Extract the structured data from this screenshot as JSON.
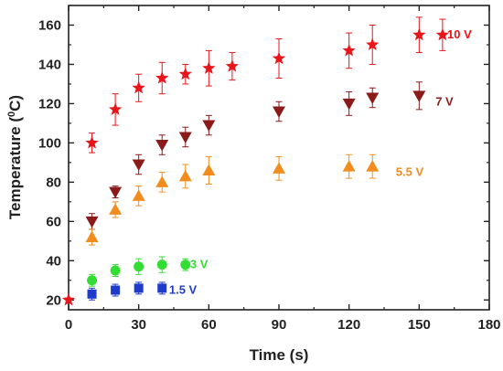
{
  "chart_data": {
    "type": "scatter",
    "title": "",
    "xlabel": "Time (s)",
    "ylabel_main": "Temperature (",
    "ylabel_sup": "0",
    "ylabel_tail": "C)",
    "xlim": [
      0,
      180
    ],
    "ylim": [
      15,
      170
    ],
    "xticks": [
      0,
      30,
      60,
      90,
      120,
      150,
      180
    ],
    "yticks": [
      20,
      40,
      60,
      80,
      100,
      120,
      140,
      160
    ],
    "grid": false,
    "series": [
      {
        "name": "10 V",
        "color": "#e8151b",
        "marker": "star",
        "points": [
          {
            "x": 0,
            "y": 20,
            "err": 1
          },
          {
            "x": 10,
            "y": 100,
            "err": 5
          },
          {
            "x": 20,
            "y": 117,
            "err": 8
          },
          {
            "x": 30,
            "y": 128,
            "err": 7
          },
          {
            "x": 40,
            "y": 133,
            "err": 8
          },
          {
            "x": 50,
            "y": 135,
            "err": 5
          },
          {
            "x": 60,
            "y": 138,
            "err": 9
          },
          {
            "x": 70,
            "y": 139,
            "err": 7
          },
          {
            "x": 90,
            "y": 143,
            "err": 10
          },
          {
            "x": 120,
            "y": 147,
            "err": 9
          },
          {
            "x": 130,
            "y": 150,
            "err": 10
          },
          {
            "x": 150,
            "y": 155,
            "err": 9
          },
          {
            "x": 160,
            "y": 155,
            "err": 8
          }
        ]
      },
      {
        "name": "7 V",
        "color": "#8b1a1a",
        "marker": "triangle-down",
        "points": [
          {
            "x": 10,
            "y": 60,
            "err": 4
          },
          {
            "x": 20,
            "y": 75,
            "err": 3
          },
          {
            "x": 30,
            "y": 89,
            "err": 5
          },
          {
            "x": 40,
            "y": 99,
            "err": 5
          },
          {
            "x": 50,
            "y": 103,
            "err": 5
          },
          {
            "x": 60,
            "y": 109,
            "err": 5
          },
          {
            "x": 90,
            "y": 116,
            "err": 5
          },
          {
            "x": 120,
            "y": 120,
            "err": 6
          },
          {
            "x": 130,
            "y": 123,
            "err": 5
          },
          {
            "x": 150,
            "y": 124,
            "err": 7
          }
        ]
      },
      {
        "name": "5.5 V",
        "color": "#f28c1e",
        "marker": "triangle-up",
        "points": [
          {
            "x": 10,
            "y": 52,
            "err": 4
          },
          {
            "x": 20,
            "y": 66,
            "err": 4
          },
          {
            "x": 30,
            "y": 73,
            "err": 5
          },
          {
            "x": 40,
            "y": 80,
            "err": 5
          },
          {
            "x": 50,
            "y": 83,
            "err": 6
          },
          {
            "x": 60,
            "y": 86,
            "err": 7
          },
          {
            "x": 90,
            "y": 87,
            "err": 6
          },
          {
            "x": 120,
            "y": 88,
            "err": 6
          },
          {
            "x": 130,
            "y": 88,
            "err": 6
          }
        ]
      },
      {
        "name": "3 V",
        "color": "#33dd33",
        "marker": "circle",
        "points": [
          {
            "x": 10,
            "y": 30,
            "err": 3
          },
          {
            "x": 20,
            "y": 35,
            "err": 3
          },
          {
            "x": 30,
            "y": 37,
            "err": 4
          },
          {
            "x": 40,
            "y": 38,
            "err": 4
          },
          {
            "x": 50,
            "y": 38,
            "err": 3
          }
        ]
      },
      {
        "name": "1.5 V",
        "color": "#1f3bc9",
        "marker": "square",
        "points": [
          {
            "x": 10,
            "y": 23,
            "err": 3
          },
          {
            "x": 20,
            "y": 25,
            "err": 3
          },
          {
            "x": 30,
            "y": 26,
            "err": 3
          },
          {
            "x": 40,
            "y": 26,
            "err": 3
          }
        ]
      }
    ],
    "labels": [
      {
        "text": "10 V",
        "x": 162,
        "y": 155,
        "color": "#e8151b"
      },
      {
        "text": "7 V",
        "x": 157,
        "y": 121,
        "color": "#8b1a1a"
      },
      {
        "text": "5.5 V",
        "x": 140,
        "y": 85,
        "color": "#f28c1e"
      },
      {
        "text": "3 V",
        "x": 52,
        "y": 38,
        "color": "#33dd33"
      },
      {
        "text": "1.5 V",
        "x": 43,
        "y": 25,
        "color": "#1f3bc9"
      }
    ]
  }
}
